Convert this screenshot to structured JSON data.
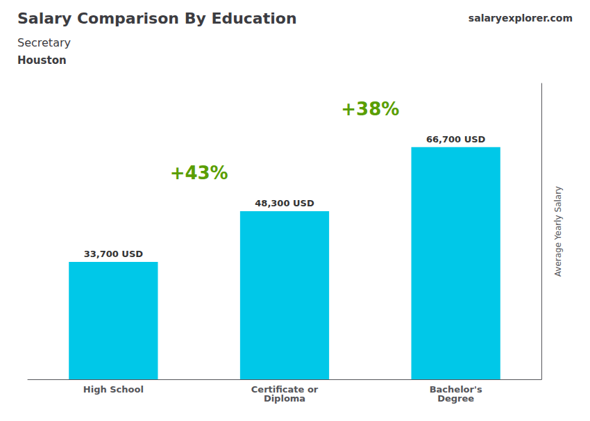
{
  "chart_data": {
    "type": "bar",
    "title": "Salary Comparison By Education",
    "subtitle": "Secretary",
    "location": "Houston",
    "watermark": "salaryexplorer.com",
    "ylabel": "Average Yearly Salary",
    "categories": [
      "High School",
      "Certificate or\nDiploma",
      "Bachelor's\nDegree"
    ],
    "values": [
      33700,
      48300,
      66700
    ],
    "value_labels": [
      "33,700 USD",
      "48,300 USD",
      "66,700 USD"
    ],
    "change_labels": [
      "+43%",
      "+38%"
    ],
    "color": "#00c8e8",
    "ylim": [
      0,
      85000
    ],
    "grid": false,
    "tick_labels": "x",
    "data_labels": true
  }
}
